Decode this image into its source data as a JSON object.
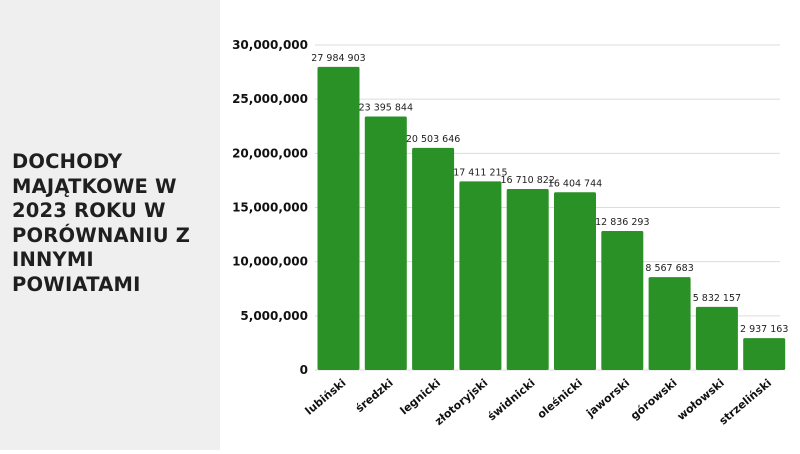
{
  "panel": {
    "title": "DOCHODY MAJĄTKOWE W 2023 ROKU W PORÓWNANIU Z INNYMI POWIATAMI"
  },
  "colors": {
    "bar": "#2a9127",
    "panel_background": "#efefef",
    "grid": "#dcdcdc"
  },
  "chart_data": {
    "type": "bar",
    "title": "DOCHODY MAJĄTKOWE W 2023 ROKU W PORÓWNANIU Z INNYMI POWIATAMI",
    "xlabel": "",
    "ylabel": "",
    "ylim": [
      0,
      30000000
    ],
    "yticks": [
      0,
      5000000,
      10000000,
      15000000,
      20000000,
      25000000,
      30000000
    ],
    "ytick_labels": [
      "0",
      "5,000,000",
      "10,000,000",
      "15,000,000",
      "20,000,000",
      "25,000,000",
      "30,000,000"
    ],
    "grid": true,
    "categories": [
      "lubiński",
      "średzki",
      "legnicki",
      "złotoryjski",
      "świdnicki",
      "oleśnicki",
      "jaworski",
      "górowski",
      "wołowski",
      "strzeliński"
    ],
    "values": [
      27984903,
      23395844,
      20503646,
      17411215,
      16710822,
      16404744,
      12836293,
      8567683,
      5832157,
      2937163
    ],
    "data_labels": [
      "27 984 903",
      "23 395 844",
      "20 503 646",
      "17 411 215",
      "16 710 822",
      "16 404 744",
      "12 836 293",
      "8 567 683",
      "5 832 157",
      "2 937 163"
    ]
  }
}
